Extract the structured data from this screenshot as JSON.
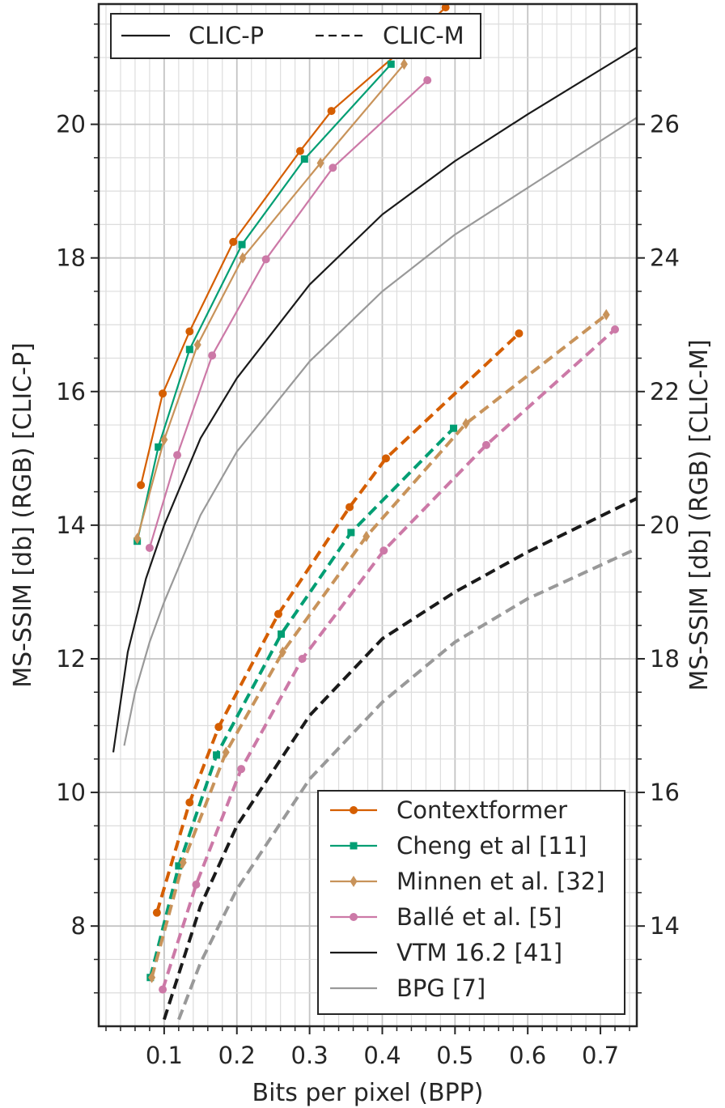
{
  "chart_data": {
    "type": "line",
    "xlabel": "Bits per pixel (BPP)",
    "ylabel_left": "MS-SSIM [db] (RGB) [CLIC-P]",
    "ylabel_right": "MS-SSIM [db] (RGB) [CLIC-M]",
    "xlim": [
      0.01,
      0.75
    ],
    "ylim_left": [
      6.5,
      21.8
    ],
    "ylim_right": [
      12.5,
      27.8
    ],
    "x_ticks": [
      0.1,
      0.2,
      0.3,
      0.4,
      0.5,
      0.6,
      0.7
    ],
    "x_tick_labels": [
      "0.1",
      "0.2",
      "0.3",
      "0.4",
      "0.5",
      "0.6",
      "0.7"
    ],
    "y_left_ticks": [
      8,
      10,
      12,
      14,
      16,
      18,
      20
    ],
    "y_left_tick_labels": [
      "8",
      "10",
      "12",
      "14",
      "16",
      "18",
      "20"
    ],
    "y_right_ticks": [
      14,
      16,
      18,
      20,
      22,
      24,
      26
    ],
    "y_right_tick_labels": [
      "14",
      "16",
      "18",
      "20",
      "22",
      "24",
      "26"
    ],
    "grid": true,
    "dataset_legend": {
      "position": "top-left",
      "entries": [
        {
          "label": "CLIC-P",
          "style": "solid"
        },
        {
          "label": "CLIC-M",
          "style": "dashed"
        }
      ]
    },
    "method_legend_position": "lower-right",
    "series": [
      {
        "name": "Contextformer",
        "color": "#d55e00",
        "marker": "circle",
        "axis": "left",
        "style": "solid",
        "x": [
          0.068,
          0.098,
          0.135,
          0.195,
          0.287,
          0.33,
          0.42,
          0.487
        ],
        "y": [
          14.6,
          15.97,
          16.9,
          18.24,
          19.6,
          20.2,
          21.05,
          21.75
        ]
      },
      {
        "name": "Contextformer",
        "color": "#d55e00",
        "marker": "circle",
        "axis": "right",
        "style": "dashed",
        "x": [
          0.09,
          0.135,
          0.175,
          0.257,
          0.355,
          0.405,
          0.588
        ],
        "y": [
          14.2,
          15.85,
          16.98,
          18.67,
          20.27,
          21.0,
          22.87
        ]
      },
      {
        "name": "Cheng et al [11]",
        "color": "#009e73",
        "marker": "square",
        "axis": "left",
        "style": "solid",
        "x": [
          0.063,
          0.092,
          0.135,
          0.207,
          0.293,
          0.412
        ],
        "y": [
          13.76,
          15.17,
          16.63,
          18.2,
          19.48,
          20.9
        ]
      },
      {
        "name": "Cheng et al [11]",
        "color": "#009e73",
        "marker": "square",
        "axis": "right",
        "style": "dashed",
        "x": [
          0.081,
          0.12,
          0.172,
          0.261,
          0.357,
          0.498
        ],
        "y": [
          13.23,
          14.9,
          16.56,
          18.37,
          19.89,
          21.45
        ]
      },
      {
        "name": "Minnen et al. [32]",
        "color": "#c8935a",
        "marker": "diamond",
        "axis": "left",
        "style": "solid",
        "x": [
          0.063,
          0.1,
          0.146,
          0.208,
          0.315,
          0.43
        ],
        "y": [
          13.8,
          15.28,
          16.7,
          18.0,
          19.42,
          20.9
        ]
      },
      {
        "name": "Minnen et al. [32]",
        "color": "#c8935a",
        "marker": "diamond",
        "axis": "right",
        "style": "dashed",
        "x": [
          0.083,
          0.126,
          0.185,
          0.263,
          0.378,
          0.515,
          0.708
        ],
        "y": [
          13.23,
          14.95,
          16.6,
          18.1,
          19.83,
          21.52,
          23.15
        ]
      },
      {
        "name": "Ballé et al. [5]",
        "color": "#cc79a7",
        "marker": "circle",
        "axis": "left",
        "style": "solid",
        "x": [
          0.08,
          0.118,
          0.166,
          0.24,
          0.332,
          0.462
        ],
        "y": [
          13.66,
          15.05,
          16.54,
          17.98,
          19.35,
          20.66
        ]
      },
      {
        "name": "Ballé et al. [5]",
        "color": "#cc79a7",
        "marker": "circle",
        "axis": "right",
        "style": "dashed",
        "x": [
          0.098,
          0.144,
          0.206,
          0.29,
          0.402,
          0.543,
          0.72
        ],
        "y": [
          13.05,
          14.62,
          16.35,
          18.0,
          19.62,
          21.2,
          22.93
        ]
      },
      {
        "name": "VTM 16.2 [41]",
        "color": "#1a1a1a",
        "marker": "none",
        "axis": "left",
        "style": "solid",
        "x": [
          0.03,
          0.05,
          0.075,
          0.1,
          0.15,
          0.2,
          0.3,
          0.4,
          0.5,
          0.6,
          0.75
        ],
        "y": [
          10.6,
          12.1,
          13.2,
          14.0,
          15.3,
          16.2,
          17.6,
          18.65,
          19.45,
          20.15,
          21.15
        ]
      },
      {
        "name": "VTM 16.2 [41]",
        "color": "#1a1a1a",
        "marker": "none",
        "axis": "right",
        "style": "dashed",
        "x": [
          0.1,
          0.15,
          0.2,
          0.3,
          0.4,
          0.5,
          0.6,
          0.75
        ],
        "y": [
          12.6,
          14.3,
          15.5,
          17.15,
          18.3,
          19.0,
          19.6,
          20.4
        ]
      },
      {
        "name": "BPG [7]",
        "color": "#999999",
        "marker": "none",
        "axis": "left",
        "style": "solid",
        "x": [
          0.045,
          0.06,
          0.08,
          0.1,
          0.15,
          0.2,
          0.3,
          0.4,
          0.5,
          0.6,
          0.75
        ],
        "y": [
          10.7,
          11.5,
          12.25,
          12.85,
          14.15,
          15.1,
          16.45,
          17.5,
          18.35,
          19.05,
          20.1
        ]
      },
      {
        "name": "BPG [7]",
        "color": "#999999",
        "marker": "none",
        "axis": "right",
        "style": "dashed",
        "x": [
          0.12,
          0.15,
          0.2,
          0.3,
          0.4,
          0.5,
          0.6,
          0.75
        ],
        "y": [
          12.6,
          13.45,
          14.55,
          16.2,
          17.35,
          18.25,
          18.9,
          19.65
        ]
      }
    ],
    "method_legend": [
      {
        "label": "Contextformer",
        "color": "#d55e00",
        "marker": "circle"
      },
      {
        "label": "Cheng et al [11]",
        "color": "#009e73",
        "marker": "square"
      },
      {
        "label": "Minnen et al. [32]",
        "color": "#c8935a",
        "marker": "diamond"
      },
      {
        "label": "Ballé et al. [5]",
        "color": "#cc79a7",
        "marker": "circle"
      },
      {
        "label": "VTM 16.2 [41]",
        "color": "#1a1a1a",
        "marker": "none"
      },
      {
        "label": "BPG [7]",
        "color": "#999999",
        "marker": "none"
      }
    ]
  }
}
